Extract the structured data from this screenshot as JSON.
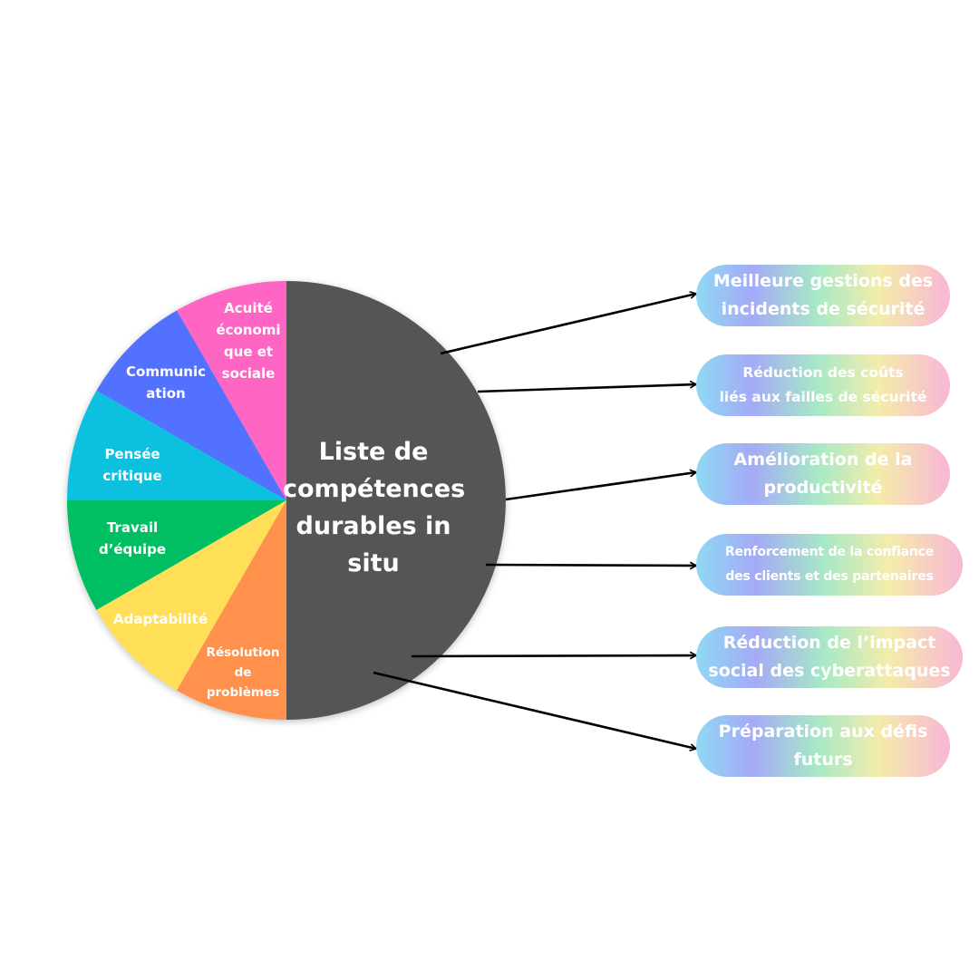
{
  "wheel": {
    "center_label": "Liste de\ncompétences\ndurables in\nsitu",
    "center_color": "#545454",
    "segments": [
      {
        "label": "Acuité\néconomi\nque et\nsociale",
        "color": "#ff66c4"
      },
      {
        "label": "Communic\nation",
        "color": "#5271ff"
      },
      {
        "label": "Pensée\ncritique",
        "color": "#0cc0df"
      },
      {
        "label": "Travail\nd’équipe",
        "color": "#00bf63"
      },
      {
        "label": "Adaptabilité",
        "color": "#ffde59"
      },
      {
        "label": "Résolution\nde\nproblèmes",
        "color": "#ff914d"
      }
    ]
  },
  "benefits": [
    {
      "label": "Meilleure gestions des\nincidents de sécurité"
    },
    {
      "label": "Réduction des coûts\nliés aux failles de sécurité"
    },
    {
      "label": "Amélioration de la\nproductivité"
    },
    {
      "label": "Renforcement de la confiance\ndes clients et des partenaires"
    },
    {
      "label": "Réduction de l’impact\nsocial des cyberattaques"
    },
    {
      "label": "Préparation aux défis\nfuturs"
    }
  ],
  "colors": {
    "arrow": "#000000",
    "pill_gradient": [
      "#8fd9f3",
      "#a4aaf7",
      "#a7e9c6",
      "#f4ecaa",
      "#f9b6d6"
    ]
  }
}
